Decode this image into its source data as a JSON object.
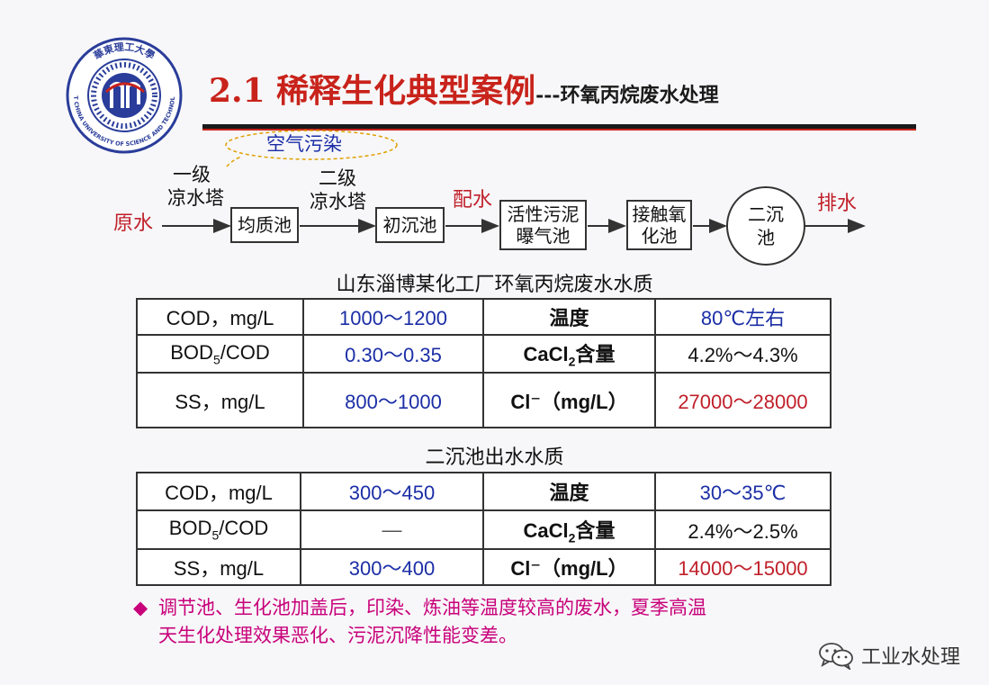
{
  "header": {
    "title_main": "2.1 稀释生化典型案例",
    "title_sub": "---环氧丙烷废水处理",
    "logo_text_top": "華東理工大學",
    "logo_text_ring": "EAST CHINA UNIVERSITY OF SCIENCE AND TECHNOLOGY"
  },
  "flow": {
    "air_pollution": "空气污染",
    "tower1_line1": "一级",
    "tower1_line2": "凉水塔",
    "tower2_line1": "二级",
    "tower2_line2": "凉水塔",
    "raw_water": "原水",
    "mix_water": "配水",
    "discharge": "排水",
    "box_equalization": "均质池",
    "box_primary": "初沉池",
    "box_activated_l1": "活性污泥",
    "box_activated_l2": "曝气池",
    "box_contact_l1": "接触氧",
    "box_contact_l2": "化池",
    "box_secondary_l1": "二沉",
    "box_secondary_l2": "池"
  },
  "table1": {
    "caption": "山东淄博某化工厂环氧丙烷废水水质",
    "rows": [
      {
        "label": "COD，mg/L",
        "value": "1000～1200",
        "label2": "温度",
        "value2": "80℃左右"
      },
      {
        "label_pre": "BOD",
        "label_sub": "5",
        "label_post": "/COD",
        "value": "0.30～0.35",
        "label2_pre": "CaCl",
        "label2_sub": "2",
        "label2_post": "含量",
        "value2": "4.2%～4.3%"
      },
      {
        "label": "SS，mg/L",
        "value": "800～1000",
        "label2": "Cl⁻（mg/L）",
        "value2": "27000～28000"
      }
    ]
  },
  "table2": {
    "caption": "二沉池出水水质",
    "rows": [
      {
        "label": "COD，mg/L",
        "value": "300～450",
        "label2": "温度",
        "value2": "30～35℃"
      },
      {
        "label_pre": "BOD",
        "label_sub": "5",
        "label_post": "/COD",
        "value": "—",
        "label2_pre": "CaCl",
        "label2_sub": "2",
        "label2_post": "含量",
        "value2": "2.4%～2.5%"
      },
      {
        "label": "SS，mg/L",
        "value": "300～400",
        "label2": "Cl⁻（mg/L）",
        "value2": "14000～15000"
      }
    ]
  },
  "note": {
    "bullet": "◆",
    "line1": "调节池、生化池加盖后，印染、炼油等温度较高的废水，夏季高温",
    "line2": "天生化处理效果恶化、污泥沉降性能变差。"
  },
  "watermark": {
    "text": "工业水处理",
    "icon": "wechat-icon"
  },
  "colors": {
    "accent_red": "#c8231b",
    "value_blue": "#1b2ea6",
    "note_magenta": "#c8007a"
  }
}
